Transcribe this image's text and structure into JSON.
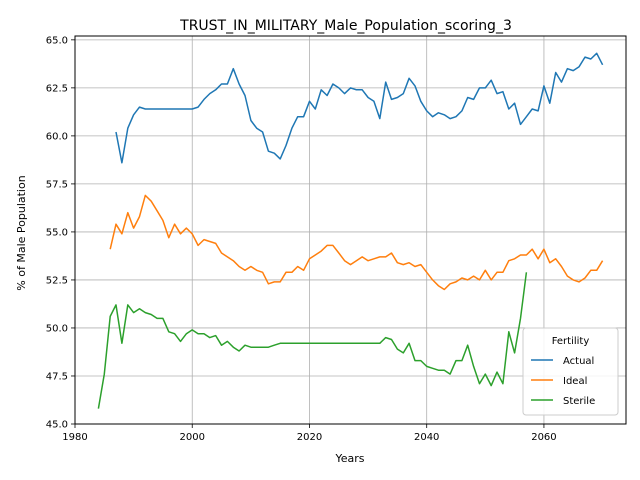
{
  "chart_data": {
    "type": "line",
    "title": "TRUST_IN_MILITARY_Male_Population_scoring_3",
    "xlabel": "Years",
    "ylabel": "% of Male Population",
    "xlim": [
      1980,
      2074
    ],
    "ylim": [
      45.0,
      65.2
    ],
    "xticks": [
      1980,
      2000,
      2020,
      2040,
      2060
    ],
    "yticks": [
      45.0,
      47.5,
      50.0,
      52.5,
      55.0,
      57.5,
      60.0,
      62.5,
      65.0
    ],
    "grid": true,
    "legend": {
      "title": "Fertility",
      "position": "bottom-right"
    },
    "series": [
      {
        "name": "Actual",
        "color": "#1f77b4",
        "x": [
          1987,
          1988,
          1989,
          1990,
          1991,
          1992,
          1993,
          1994,
          1995,
          1996,
          1997,
          1998,
          1999,
          2000,
          2001,
          2002,
          2003,
          2004,
          2005,
          2006,
          2007,
          2008,
          2009,
          2010,
          2011,
          2012,
          2013,
          2014,
          2015,
          2016,
          2017,
          2018,
          2019,
          2020,
          2021,
          2022,
          2023,
          2024,
          2025,
          2026,
          2027,
          2028,
          2029,
          2030,
          2031,
          2032,
          2033,
          2034,
          2035,
          2036,
          2037,
          2038,
          2039,
          2040,
          2041,
          2042,
          2043,
          2044,
          2045,
          2046,
          2047,
          2048,
          2049,
          2050,
          2051,
          2052,
          2053,
          2054,
          2055,
          2056,
          2057,
          2058,
          2059,
          2060,
          2061,
          2062,
          2063,
          2064,
          2065,
          2066,
          2067,
          2068,
          2069,
          2070
        ],
        "values": [
          60.2,
          58.6,
          60.4,
          61.1,
          61.5,
          61.4,
          61.4,
          61.4,
          61.4,
          61.4,
          61.4,
          61.4,
          61.4,
          61.4,
          61.5,
          61.9,
          62.2,
          62.4,
          62.7,
          62.7,
          63.5,
          62.7,
          62.1,
          60.8,
          60.4,
          60.2,
          59.2,
          59.1,
          58.8,
          59.5,
          60.4,
          61.0,
          61.0,
          61.8,
          61.4,
          62.4,
          62.1,
          62.7,
          62.5,
          62.2,
          62.5,
          62.4,
          62.4,
          62.0,
          61.8,
          60.9,
          62.8,
          61.9,
          62.0,
          62.2,
          63.0,
          62.6,
          61.8,
          61.3,
          61.0,
          61.2,
          61.1,
          60.9,
          61.0,
          61.3,
          62.0,
          61.9,
          62.5,
          62.5,
          62.9,
          62.2,
          62.3,
          61.4,
          61.7,
          60.6,
          61.0,
          61.4,
          61.3,
          62.6,
          61.7,
          63.3,
          62.8,
          63.5,
          63.4,
          63.6,
          64.1,
          64.0,
          64.3,
          63.7
        ]
      },
      {
        "name": "Ideal",
        "color": "#ff7f0e",
        "x": [
          1986,
          1987,
          1988,
          1989,
          1990,
          1991,
          1992,
          1993,
          1994,
          1995,
          1996,
          1997,
          1998,
          1999,
          2000,
          2001,
          2002,
          2003,
          2004,
          2005,
          2006,
          2007,
          2008,
          2009,
          2010,
          2011,
          2012,
          2013,
          2014,
          2015,
          2016,
          2017,
          2018,
          2019,
          2020,
          2021,
          2022,
          2023,
          2024,
          2025,
          2026,
          2027,
          2028,
          2029,
          2030,
          2031,
          2032,
          2033,
          2034,
          2035,
          2036,
          2037,
          2038,
          2039,
          2040,
          2041,
          2042,
          2043,
          2044,
          2045,
          2046,
          2047,
          2048,
          2049,
          2050,
          2051,
          2052,
          2053,
          2054,
          2055,
          2056,
          2057,
          2058,
          2059,
          2060,
          2061,
          2062,
          2063,
          2064,
          2065,
          2066,
          2067,
          2068,
          2069,
          2070
        ],
        "values": [
          54.1,
          55.4,
          54.9,
          56.0,
          55.2,
          55.8,
          56.9,
          56.6,
          56.1,
          55.6,
          54.7,
          55.4,
          54.9,
          55.2,
          54.9,
          54.3,
          54.6,
          54.5,
          54.4,
          53.9,
          53.7,
          53.5,
          53.2,
          53.0,
          53.2,
          53.0,
          52.9,
          52.3,
          52.4,
          52.4,
          52.9,
          52.9,
          53.2,
          53.0,
          53.6,
          53.8,
          54.0,
          54.3,
          54.3,
          53.9,
          53.5,
          53.3,
          53.5,
          53.7,
          53.5,
          53.6,
          53.7,
          53.7,
          53.9,
          53.4,
          53.3,
          53.4,
          53.2,
          53.3,
          52.9,
          52.5,
          52.2,
          52.0,
          52.3,
          52.4,
          52.6,
          52.5,
          52.7,
          52.5,
          53.0,
          52.5,
          52.9,
          52.9,
          53.5,
          53.6,
          53.8,
          53.8,
          54.1,
          53.6,
          54.1,
          53.4,
          53.6,
          53.2,
          52.7,
          52.5,
          52.4,
          52.6,
          53.0,
          53.0,
          53.5
        ]
      },
      {
        "name": "Sterile",
        "color": "#2ca02c",
        "x": [
          1984,
          1985,
          1986,
          1987,
          1988,
          1989,
          1990,
          1991,
          1992,
          1993,
          1994,
          1995,
          1996,
          1997,
          1998,
          1999,
          2000,
          2001,
          2002,
          2003,
          2004,
          2005,
          2006,
          2007,
          2008,
          2009,
          2010,
          2011,
          2012,
          2013,
          2014,
          2015,
          2016,
          2017,
          2018,
          2019,
          2020,
          2021,
          2022,
          2023,
          2024,
          2025,
          2026,
          2027,
          2028,
          2029,
          2030,
          2031,
          2032,
          2033,
          2034,
          2035,
          2036,
          2037,
          2038,
          2039,
          2040,
          2041,
          2042,
          2043,
          2044,
          2045,
          2046,
          2047,
          2048,
          2049,
          2050,
          2051,
          2052,
          2053,
          2054,
          2055,
          2056,
          2057
        ],
        "values": [
          45.8,
          47.6,
          50.6,
          51.2,
          49.2,
          51.2,
          50.8,
          51.0,
          50.8,
          50.7,
          50.5,
          50.5,
          49.8,
          49.7,
          49.3,
          49.7,
          49.9,
          49.7,
          49.7,
          49.5,
          49.6,
          49.1,
          49.3,
          49.0,
          48.8,
          49.1,
          49.0,
          49.0,
          49.0,
          49.0,
          49.1,
          49.2,
          49.2,
          49.2,
          49.2,
          49.2,
          49.2,
          49.2,
          49.2,
          49.2,
          49.2,
          49.2,
          49.2,
          49.2,
          49.2,
          49.2,
          49.2,
          49.2,
          49.2,
          49.5,
          49.4,
          48.9,
          48.7,
          49.2,
          48.3,
          48.3,
          48.0,
          47.9,
          47.8,
          47.8,
          47.6,
          48.3,
          48.3,
          49.1,
          48.0,
          47.1,
          47.6,
          47.0,
          47.7,
          47.1,
          49.8,
          48.7,
          50.5,
          52.9
        ]
      }
    ]
  }
}
